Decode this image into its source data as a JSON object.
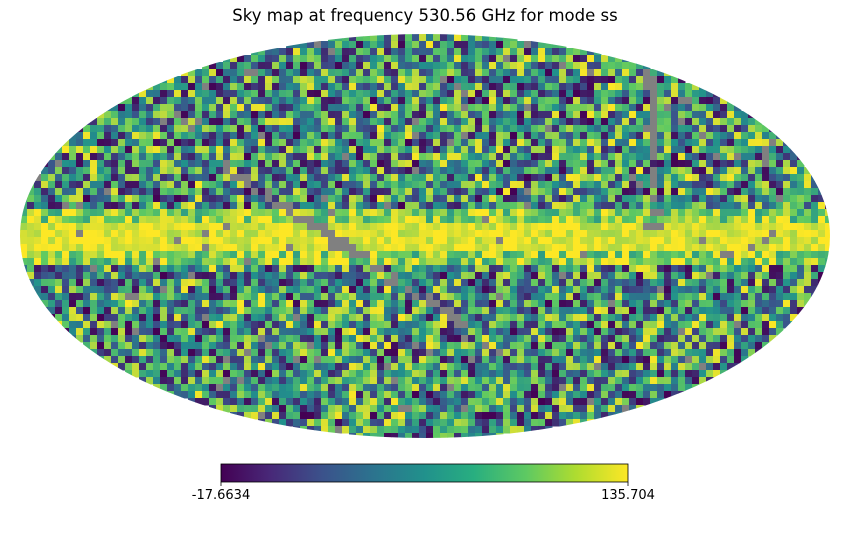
{
  "chart_data": {
    "type": "heatmap",
    "projection": "mollweide",
    "title": "Sky map at frequency 530.56 GHz for mode ss",
    "colormap": "viridis",
    "colorbar": {
      "min": -17.6634,
      "max": 135.704,
      "min_label": "-17.6634",
      "max_label": "135.704"
    },
    "mask_color": "#808080",
    "features": [
      {
        "name": "galactic-plane-band",
        "description_value": "high values near latitude 0"
      },
      {
        "name": "masked-scan-stripe",
        "description_value": "gray masked arc crossing the map"
      }
    ]
  },
  "colors": {
    "viridis_stops": [
      "#440154",
      "#3b528b",
      "#21918c",
      "#5ec962",
      "#fde725"
    ],
    "mask": "#808080"
  }
}
